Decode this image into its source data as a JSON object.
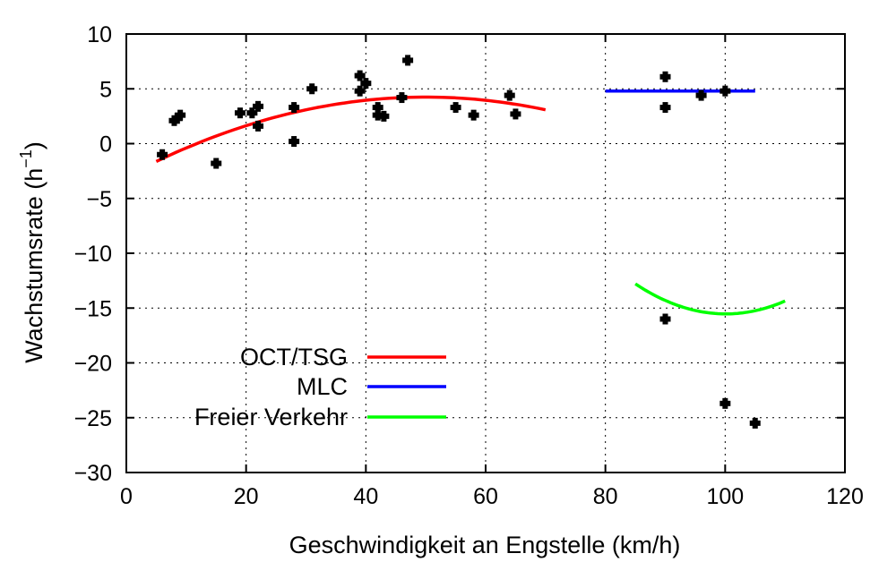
{
  "chart_data": {
    "type": "scatter",
    "xlabel": "Geschwindigkeit an Engstelle (km/h)",
    "ylabel_main": "Wachstumsrate (h",
    "ylabel_sup": "−1",
    "ylabel_close": ")",
    "xlim": [
      0,
      120
    ],
    "ylim": [
      -30,
      10
    ],
    "xticks": [
      0,
      20,
      40,
      60,
      80,
      100,
      120
    ],
    "yticks": [
      -30,
      -25,
      -20,
      -15,
      -10,
      -5,
      0,
      5,
      10
    ],
    "ytick_labels": [
      "−30",
      "−25",
      "−20",
      "−15",
      "−10",
      "−5",
      "0",
      "5",
      "10"
    ],
    "grid": true,
    "legend_position": "lower-left",
    "points": [
      [
        6,
        -1
      ],
      [
        8,
        2.1
      ],
      [
        8.5,
        2.3
      ],
      [
        9,
        2.6
      ],
      [
        15,
        -1.8
      ],
      [
        19,
        2.8
      ],
      [
        21,
        2.8
      ],
      [
        22,
        3.4
      ],
      [
        22,
        1.6
      ],
      [
        28,
        3.3
      ],
      [
        28,
        0.2
      ],
      [
        31,
        5
      ],
      [
        39,
        6.2
      ],
      [
        39,
        4.8
      ],
      [
        40,
        5.5
      ],
      [
        42,
        3.3
      ],
      [
        42,
        2.6
      ],
      [
        43,
        2.5
      ],
      [
        46,
        4.2
      ],
      [
        47,
        7.6
      ],
      [
        55,
        3.3
      ],
      [
        58,
        2.6
      ],
      [
        64,
        4.4
      ],
      [
        65,
        2.7
      ],
      [
        90,
        6.1
      ],
      [
        90,
        3.3
      ],
      [
        96,
        4.4
      ],
      [
        100,
        4.8
      ],
      [
        90,
        -16
      ],
      [
        100,
        -23.7
      ],
      [
        105,
        -25.5
      ]
    ],
    "series": [
      {
        "name": "OCT/TSG",
        "color": "#ff0000",
        "x_range": [
          5,
          70
        ],
        "formula": "quadratic",
        "coef": [
          -3.005,
          0.29,
          -0.0029
        ]
      },
      {
        "name": "MLC",
        "color": "#0000ff",
        "x_range": [
          80,
          105
        ],
        "formula": "constant",
        "coef": [
          4.8
        ]
      },
      {
        "name": "Freier Verkehr",
        "color": "#00ff00",
        "x_range": [
          85,
          110
        ],
        "formula": "quadratic",
        "coef": [
          104.72,
          -2.4025,
          0.012
        ]
      }
    ]
  }
}
